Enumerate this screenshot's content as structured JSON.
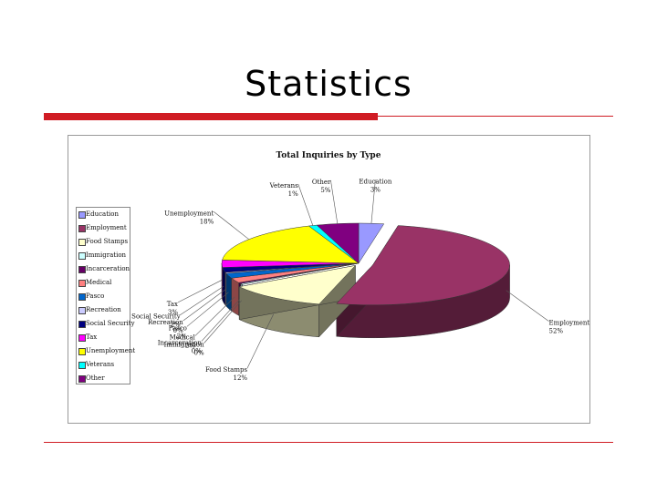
{
  "slide": {
    "title": "Statistics"
  },
  "chart_data": {
    "type": "pie",
    "title": "Total Inquiries by Type",
    "legend_position": "left",
    "slices": [
      {
        "name": "Education",
        "value": 3,
        "label": "3%",
        "color": "#9999ff"
      },
      {
        "name": "Employment",
        "value": 52,
        "label": "52%",
        "color": "#993366"
      },
      {
        "name": "Food Stamps",
        "value": 12,
        "label": "12%",
        "color": "#ffffcc"
      },
      {
        "name": "Immigration",
        "value": 0,
        "label": "0%",
        "color": "#ccffff"
      },
      {
        "name": "Incarceration",
        "value": 0,
        "label": "0%",
        "color": "#660066"
      },
      {
        "name": "Medical",
        "value": 2,
        "label": "2%",
        "color": "#ff8080"
      },
      {
        "name": "Pasco",
        "value": 2,
        "label": "2%",
        "color": "#0066cc"
      },
      {
        "name": "Recreation",
        "value": 0,
        "label": "0%",
        "color": "#ccccff"
      },
      {
        "name": "Social Security",
        "value": 2,
        "label": "2%",
        "color": "#000080"
      },
      {
        "name": "Tax",
        "value": 3,
        "label": "3%",
        "color": "#ff00ff"
      },
      {
        "name": "Unemployment",
        "value": 18,
        "label": "18%",
        "color": "#ffff00"
      },
      {
        "name": "Veterans",
        "value": 1,
        "label": "1%",
        "color": "#00ffff"
      },
      {
        "name": "Other",
        "value": 5,
        "label": "5%",
        "color": "#800080"
      }
    ]
  }
}
